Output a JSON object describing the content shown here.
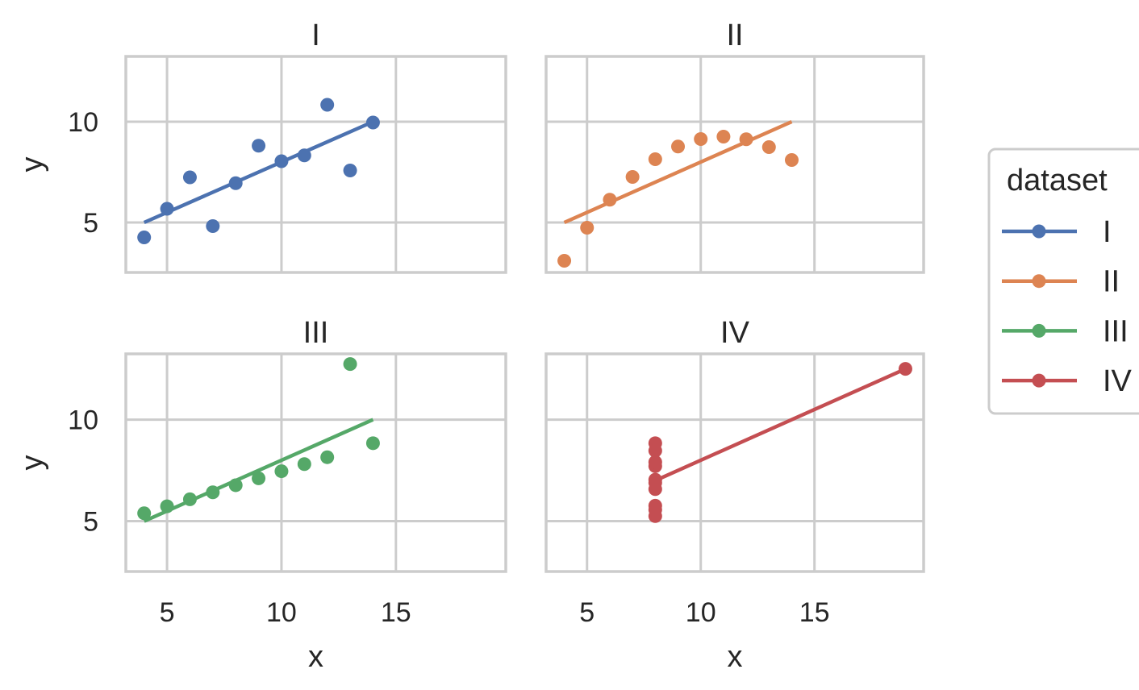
{
  "chart_data": {
    "type": "scatter",
    "title": "",
    "xlabel": "x",
    "ylabel": "y",
    "xlim": [
      3.2,
      19.8
    ],
    "ylim": [
      2.52,
      13.24
    ],
    "xticks": [
      "5",
      "10",
      "15"
    ],
    "yticks": [
      "5",
      "10"
    ],
    "grid": true,
    "legend": {
      "title": "dataset",
      "placement": "right"
    },
    "fit_line": {
      "intercept": 3.0,
      "slope": 0.5
    },
    "panels": [
      {
        "name": "I",
        "color": "#4c72b0",
        "x": [
          10,
          8,
          13,
          9,
          11,
          14,
          6,
          4,
          12,
          7,
          5
        ],
        "y": [
          8.04,
          6.95,
          7.58,
          8.81,
          8.33,
          9.96,
          7.24,
          4.26,
          10.84,
          4.82,
          5.68
        ]
      },
      {
        "name": "II",
        "color": "#dd8452",
        "x": [
          10,
          8,
          13,
          9,
          11,
          14,
          6,
          4,
          12,
          7,
          5
        ],
        "y": [
          9.14,
          8.14,
          8.74,
          8.77,
          9.26,
          8.1,
          6.13,
          3.1,
          9.13,
          7.26,
          4.74
        ]
      },
      {
        "name": "III",
        "color": "#55a868",
        "x": [
          10,
          8,
          13,
          9,
          11,
          14,
          6,
          4,
          12,
          7,
          5
        ],
        "y": [
          7.46,
          6.77,
          12.74,
          7.11,
          7.81,
          8.84,
          6.08,
          5.39,
          8.15,
          6.42,
          5.73
        ]
      },
      {
        "name": "IV",
        "color": "#c44e52",
        "x": [
          8,
          8,
          8,
          8,
          8,
          8,
          8,
          19,
          8,
          8,
          8
        ],
        "y": [
          6.58,
          5.76,
          7.71,
          8.84,
          8.47,
          7.04,
          5.25,
          12.5,
          5.56,
          7.91,
          6.89
        ]
      }
    ]
  }
}
